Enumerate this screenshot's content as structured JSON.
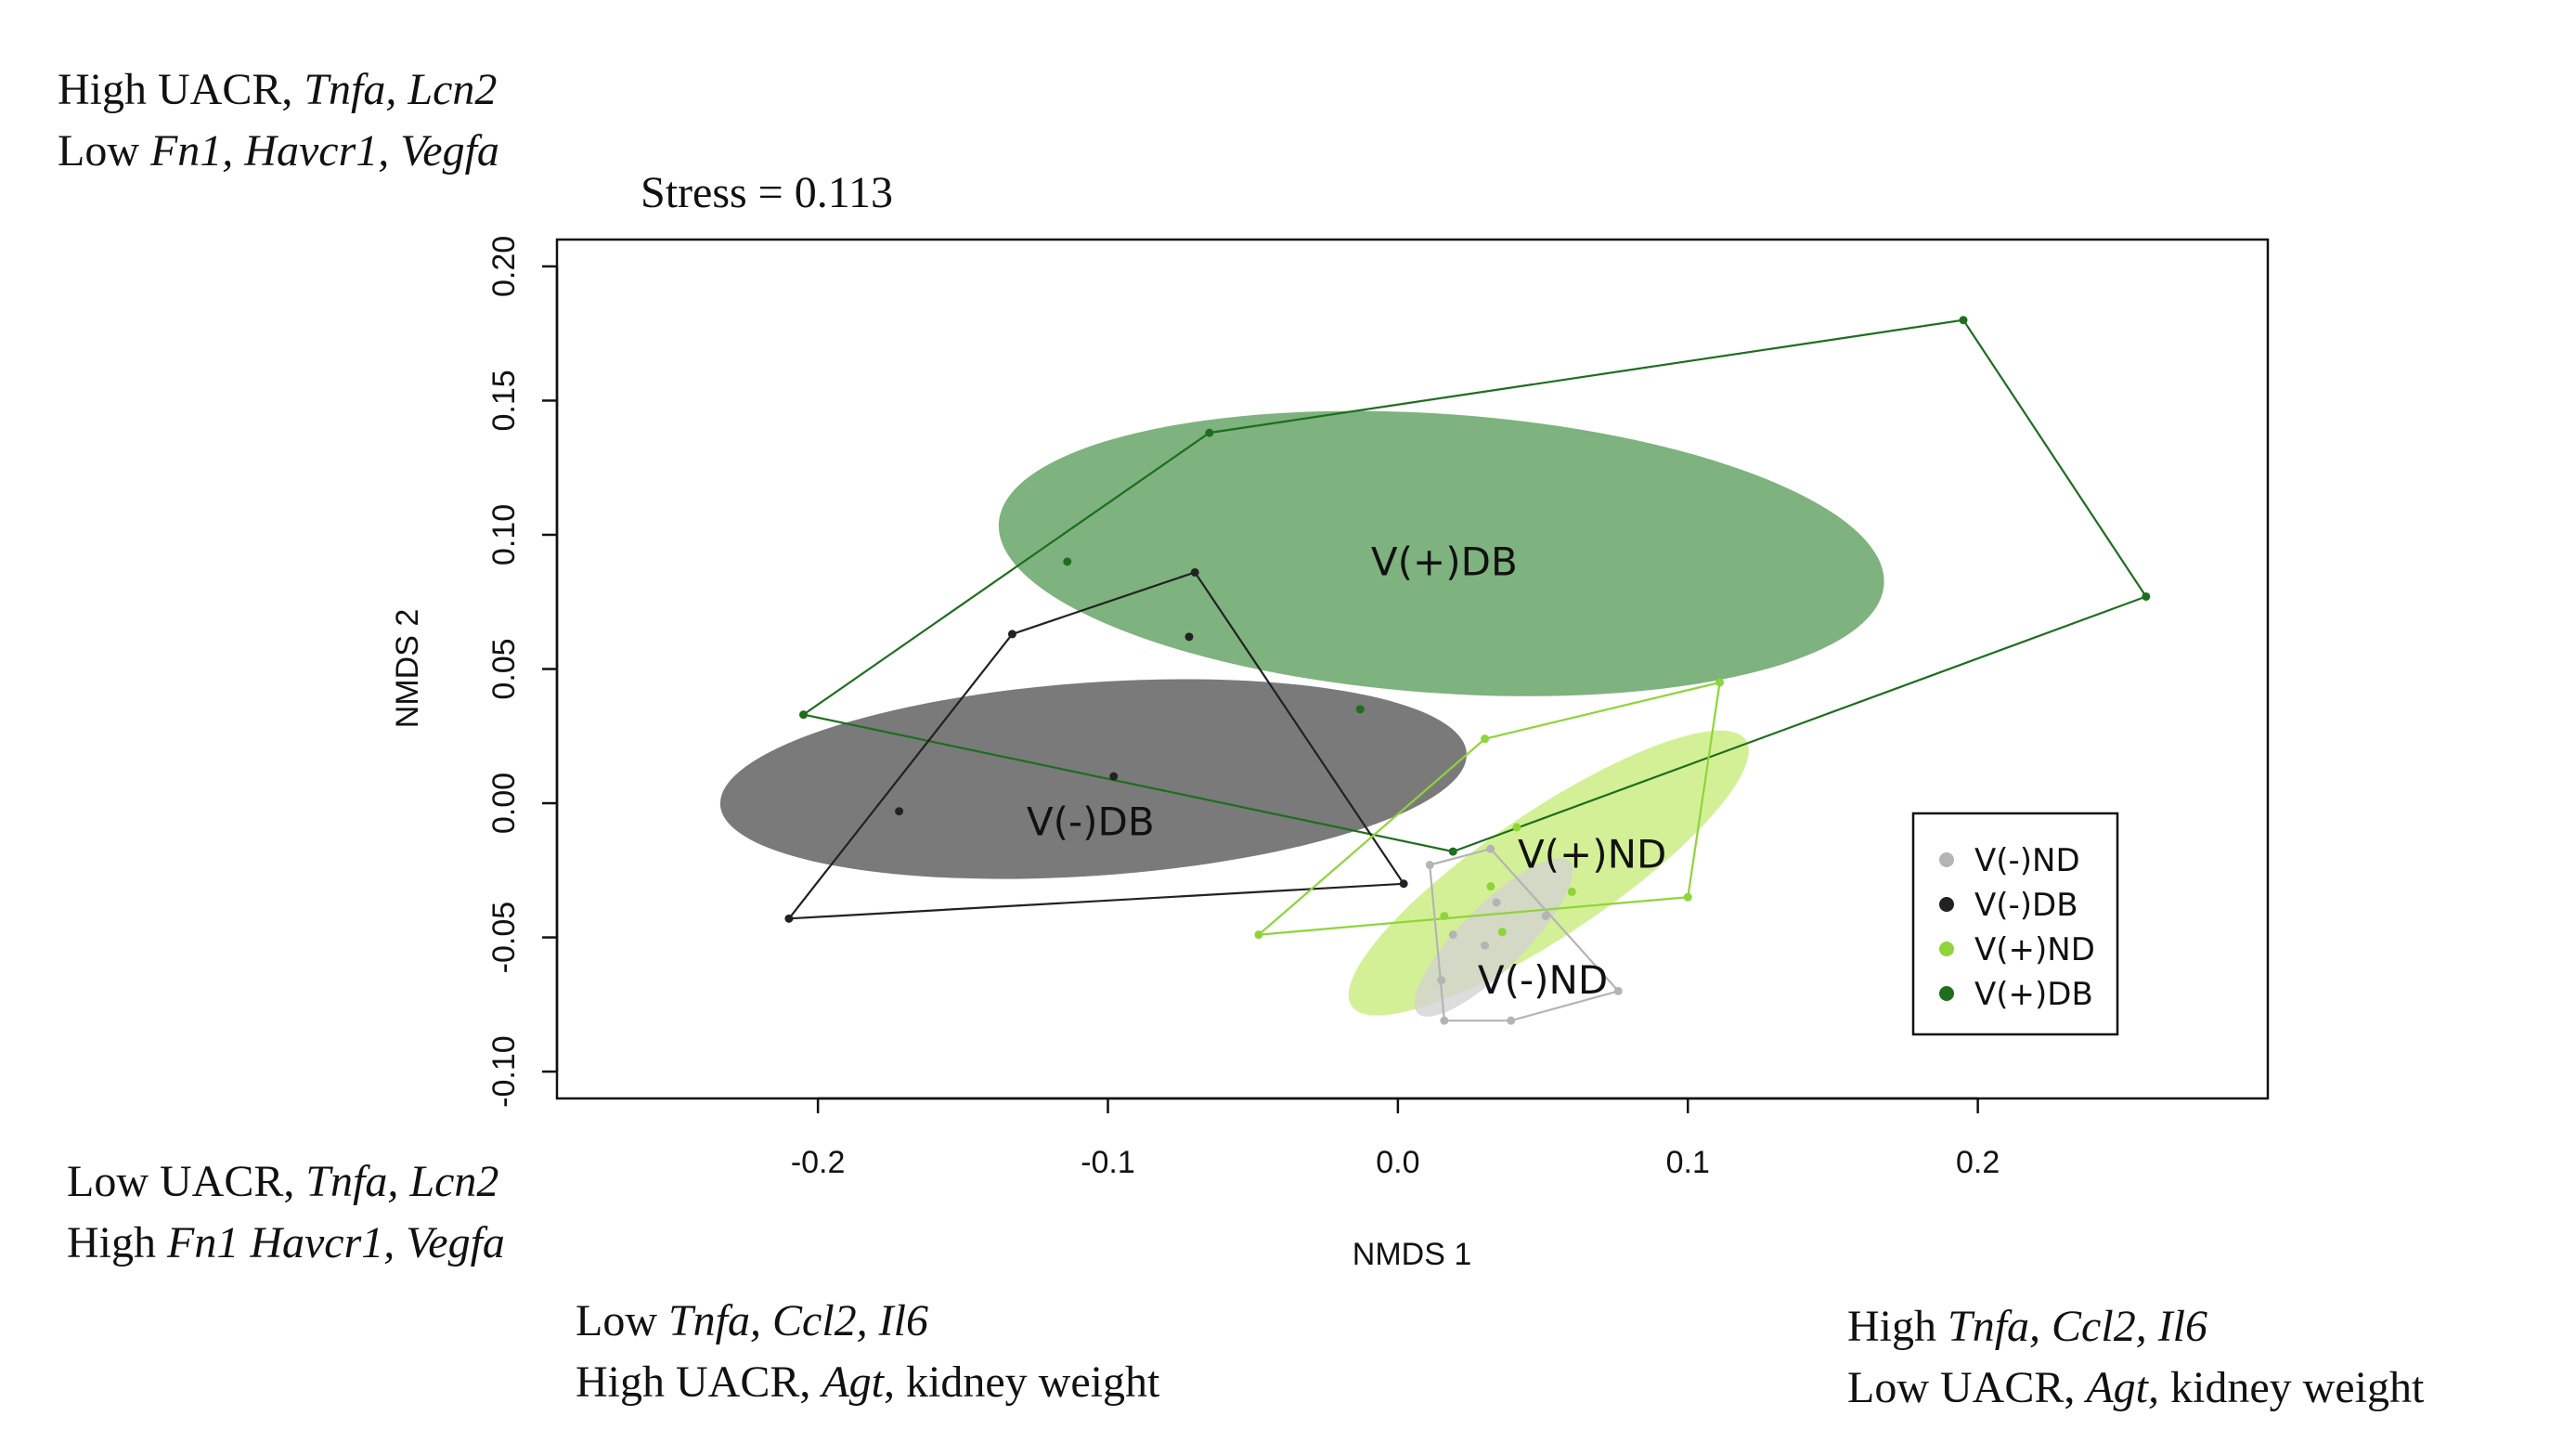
{
  "annotations": {
    "top_left": {
      "line1": {
        "plain": "High UACR, ",
        "italic": "Tnfa, Lcn2"
      },
      "line2": {
        "plain": "Low ",
        "italic": "Fn1, Havcr1, Vegfa"
      }
    },
    "bottom_left": {
      "line1": {
        "plain": "Low UACR, ",
        "italic": "Tnfa, Lcn2"
      },
      "line2": {
        "plain": "High ",
        "italic": "Fn1 Havcr1, Vegfa"
      }
    },
    "bottom_center": {
      "line1": {
        "plain": "Low ",
        "italic": "Tnfa, Ccl2, Il6"
      },
      "line2": {
        "plain": "High UACR, ",
        "italic": "Agt",
        "plain2": ", kidney weight"
      }
    },
    "bottom_right": {
      "line1": {
        "plain": "High ",
        "italic": "Tnfa, Ccl2, Il6"
      },
      "line2": {
        "plain": "Low UACR, ",
        "italic": "Agt,",
        "plain2": " kidney weight"
      }
    }
  },
  "stress_label": "Stress = 0.113",
  "chart_data": {
    "type": "scatter",
    "xlabel": "NMDS 1",
    "ylabel": "NMDS 2",
    "xlim": [
      -0.29,
      0.3
    ],
    "ylim": [
      -0.11,
      0.21
    ],
    "xticks": [
      -0.2,
      -0.1,
      0.0,
      0.1,
      0.2
    ],
    "xtick_labels": [
      "-0.2",
      "-0.1",
      "0.0",
      "0.1",
      "0.2"
    ],
    "yticks": [
      -0.1,
      -0.05,
      0.0,
      0.05,
      0.1,
      0.15,
      0.2
    ],
    "ytick_labels": [
      "-0.10",
      "-0.05",
      "0.00",
      "0.05",
      "0.10",
      "0.15",
      "0.20"
    ],
    "legend_position": "bottom-right",
    "grid": false,
    "series": [
      {
        "name": "V(+)DB",
        "color": "#1e6e1e",
        "ellipse_color": "#5a9c5a",
        "ellipse": {
          "cx": 0.015,
          "cy": 0.093,
          "rx": 0.153,
          "ry": 0.052,
          "angle_deg": -4
        },
        "ellipse_label": "V(+)DB",
        "ellipse_label_pos": [
          0.016,
          0.089
        ],
        "points": [
          [
            -0.205,
            0.033
          ],
          [
            -0.065,
            0.138
          ],
          [
            0.195,
            0.18
          ],
          [
            0.258,
            0.077
          ],
          [
            -0.114,
            0.09
          ],
          [
            -0.013,
            0.035
          ],
          [
            0.019,
            -0.018
          ]
        ],
        "hull": [
          [
            -0.205,
            0.033
          ],
          [
            -0.065,
            0.138
          ],
          [
            0.195,
            0.18
          ],
          [
            0.258,
            0.077
          ],
          [
            0.019,
            -0.018
          ]
        ]
      },
      {
        "name": "V(-)DB",
        "color": "#222222",
        "ellipse_color": "#555555",
        "ellipse": {
          "cx": -0.105,
          "cy": 0.009,
          "rx": 0.129,
          "ry": 0.036,
          "angle_deg": 4
        },
        "ellipse_label": "V(-)DB",
        "ellipse_label_pos": [
          -0.106,
          -0.008
        ],
        "points": [
          [
            -0.21,
            -0.043
          ],
          [
            -0.133,
            0.063
          ],
          [
            -0.07,
            0.086
          ],
          [
            0.002,
            -0.03
          ],
          [
            -0.072,
            0.062
          ],
          [
            -0.172,
            -0.003
          ],
          [
            -0.098,
            0.01
          ]
        ],
        "hull": [
          [
            -0.21,
            -0.043
          ],
          [
            -0.133,
            0.063
          ],
          [
            -0.07,
            0.086
          ],
          [
            0.002,
            -0.03
          ]
        ]
      },
      {
        "name": "V(+)ND",
        "color": "#8fd43a",
        "ellipse_color": "#c8ec7a",
        "ellipse": {
          "cx": 0.052,
          "cy": -0.026,
          "rx": 0.082,
          "ry": 0.023,
          "angle_deg": 34
        },
        "ellipse_label": "V(+)ND",
        "ellipse_label_pos": [
          0.067,
          -0.02
        ],
        "points": [
          [
            -0.048,
            -0.049
          ],
          [
            0.03,
            0.024
          ],
          [
            0.111,
            0.045
          ],
          [
            0.1,
            -0.035
          ],
          [
            0.041,
            -0.009
          ],
          [
            0.06,
            -0.033
          ],
          [
            0.032,
            -0.031
          ],
          [
            0.036,
            -0.048
          ],
          [
            0.016,
            -0.042
          ]
        ],
        "hull": [
          [
            -0.048,
            -0.049
          ],
          [
            0.03,
            0.024
          ],
          [
            0.111,
            0.045
          ],
          [
            0.1,
            -0.035
          ]
        ]
      },
      {
        "name": "V(-)ND",
        "color": "#b4b4b4",
        "ellipse_color": "#d2d2d2",
        "ellipse": {
          "cx": 0.033,
          "cy": -0.05,
          "rx": 0.037,
          "ry": 0.012,
          "angle_deg": 45
        },
        "ellipse_label": "V(-)ND",
        "ellipse_label_pos": [
          0.05,
          -0.067
        ],
        "points": [
          [
            0.011,
            -0.023
          ],
          [
            0.032,
            -0.017
          ],
          [
            0.076,
            -0.07
          ],
          [
            0.039,
            -0.081
          ],
          [
            0.016,
            -0.081
          ],
          [
            0.015,
            -0.066
          ],
          [
            0.019,
            -0.049
          ],
          [
            0.034,
            -0.037
          ],
          [
            0.051,
            -0.042
          ],
          [
            0.03,
            -0.053
          ]
        ],
        "hull": [
          [
            0.011,
            -0.023
          ],
          [
            0.032,
            -0.017
          ],
          [
            0.076,
            -0.07
          ],
          [
            0.039,
            -0.081
          ],
          [
            0.016,
            -0.081
          ]
        ]
      }
    ],
    "legend_order": [
      "V(-)ND",
      "V(-)DB",
      "V(+)ND",
      "V(+)DB"
    ]
  }
}
